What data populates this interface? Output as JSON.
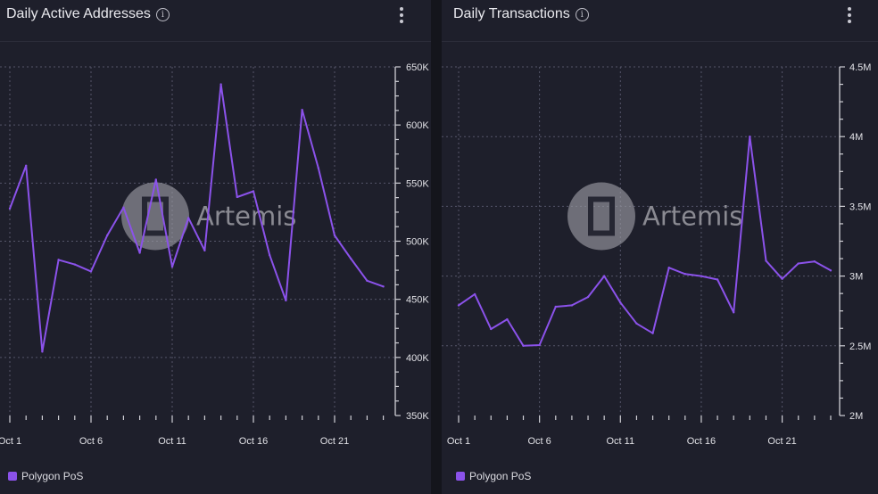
{
  "colors": {
    "series": "#8b52ea",
    "panel": "#1e1f2b",
    "background": "#14151c",
    "grid": "#55566a"
  },
  "watermark": "Artemis",
  "chart_data": [
    {
      "type": "line",
      "title": "Daily Active Addresses",
      "x": [
        "Oct 1",
        "Oct 2",
        "Oct 3",
        "Oct 4",
        "Oct 5",
        "Oct 6",
        "Oct 7",
        "Oct 8",
        "Oct 9",
        "Oct 10",
        "Oct 11",
        "Oct 12",
        "Oct 13",
        "Oct 14",
        "Oct 15",
        "Oct 16",
        "Oct 17",
        "Oct 18",
        "Oct 19",
        "Oct 20",
        "Oct 21",
        "Oct 22",
        "Oct 23",
        "Oct 24"
      ],
      "x_ticks": [
        "Oct 1",
        "Oct 6",
        "Oct 11",
        "Oct 16",
        "Oct 21"
      ],
      "series": [
        {
          "name": "Polygon PoS",
          "values": [
            528000,
            565000,
            405000,
            484000,
            480000,
            474000,
            505000,
            529000,
            490000,
            553000,
            478000,
            520000,
            492000,
            635000,
            538000,
            543000,
            488000,
            449000,
            613000,
            563000,
            505000,
            485000,
            466000,
            461000
          ]
        }
      ],
      "ylim": [
        350000,
        650000
      ],
      "y_ticks": [
        "350K",
        "400K",
        "450K",
        "500K",
        "550K",
        "600K",
        "650K"
      ],
      "y_tick_values": [
        350000,
        400000,
        450000,
        500000,
        550000,
        600000,
        650000
      ],
      "grid": true,
      "legend_position": "bottom-left"
    },
    {
      "type": "line",
      "title": "Daily Transactions",
      "x": [
        "Oct 1",
        "Oct 2",
        "Oct 3",
        "Oct 4",
        "Oct 5",
        "Oct 6",
        "Oct 7",
        "Oct 8",
        "Oct 9",
        "Oct 10",
        "Oct 11",
        "Oct 12",
        "Oct 13",
        "Oct 14",
        "Oct 15",
        "Oct 16",
        "Oct 17",
        "Oct 18",
        "Oct 19",
        "Oct 20",
        "Oct 21",
        "Oct 22",
        "Oct 23",
        "Oct 24"
      ],
      "x_ticks": [
        "Oct 1",
        "Oct 6",
        "Oct 11",
        "Oct 16",
        "Oct 21"
      ],
      "series": [
        {
          "name": "Polygon PoS",
          "values": [
            2790000,
            2870000,
            2620000,
            2690000,
            2500000,
            2505000,
            2780000,
            2790000,
            2850000,
            3000000,
            2810000,
            2660000,
            2590000,
            3060000,
            3015000,
            3000000,
            2975000,
            2740000,
            4000000,
            3110000,
            2980000,
            3090000,
            3105000,
            3040000
          ]
        }
      ],
      "ylim": [
        2000000,
        4500000
      ],
      "y_ticks": [
        "2M",
        "2.5M",
        "3M",
        "3.5M",
        "4M",
        "4.5M"
      ],
      "y_tick_values": [
        2000000,
        2500000,
        3000000,
        3500000,
        4000000,
        4500000
      ],
      "grid": true,
      "legend_position": "bottom-left"
    }
  ]
}
